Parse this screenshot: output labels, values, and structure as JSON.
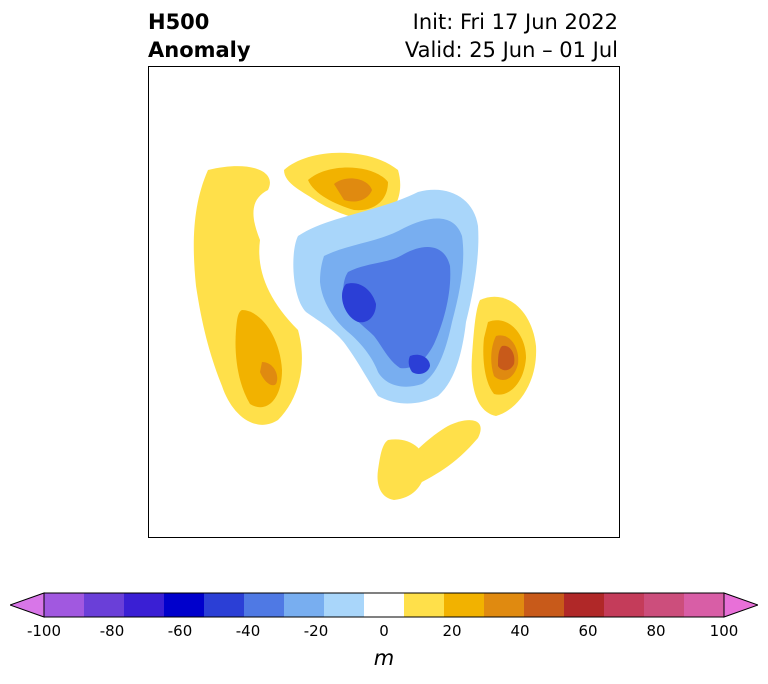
{
  "title": {
    "left_line1": "H500",
    "left_line2": "Anomaly",
    "right_line1": "Init: Fri 17 Jun 2022",
    "right_line2": "Valid: 25 Jun – 01 Jul"
  },
  "colorbar": {
    "unit": "m",
    "ticks": [
      "-100",
      "-80",
      "-60",
      "-40",
      "-20",
      "0",
      "20",
      "40",
      "60",
      "80",
      "100"
    ],
    "levels": [
      -100,
      -90,
      -80,
      -70,
      -60,
      -50,
      -40,
      -30,
      -20,
      -10,
      10,
      20,
      30,
      40,
      50,
      60,
      70,
      80,
      90,
      100
    ],
    "colors": [
      "#d876e8",
      "#a158e0",
      "#6a3fd8",
      "#3a1fd4",
      "#0000cc",
      "#2b3fd6",
      "#4f79e4",
      "#78aef0",
      "#a9d6fa",
      "#ffffff",
      "#ffe04a",
      "#f2b200",
      "#e08a10",
      "#c85a1a",
      "#b02828",
      "#c43c5a",
      "#cc4e7c",
      "#d85ea6",
      "#e870d8"
    ]
  },
  "map": {
    "projection": "polar stereographic",
    "anomaly_colors": {
      "pos_10": "#ffe04a",
      "pos_20": "#f2b200",
      "pos_30": "#e08a10",
      "pos_40": "#c85a1a",
      "neg_10": "#a9d6fa",
      "neg_20": "#78aef0",
      "neg_30": "#4f79e4",
      "neg_40": "#2b3fd6"
    }
  }
}
